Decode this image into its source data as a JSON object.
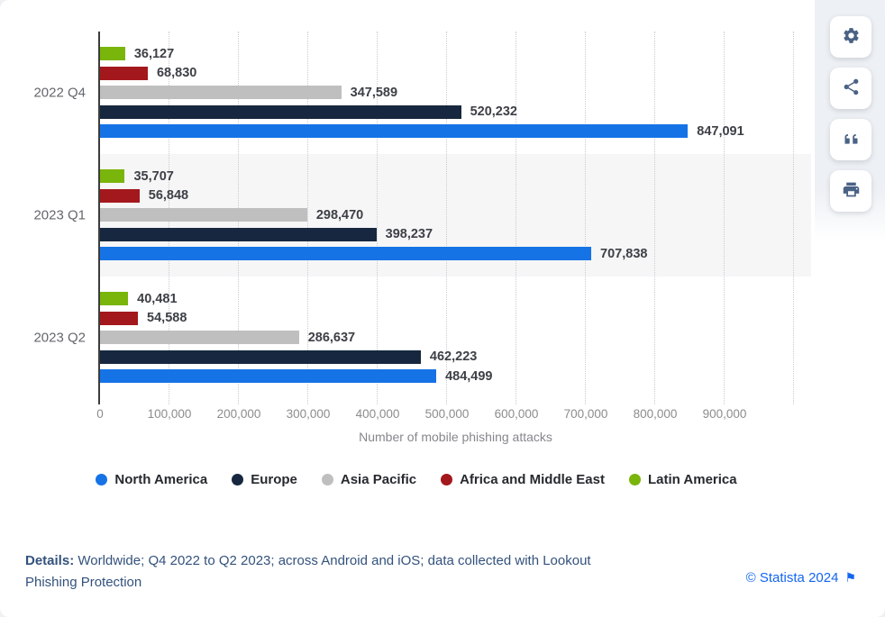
{
  "chart_data": {
    "type": "bar",
    "orientation": "horizontal",
    "title": "",
    "xlabel": "Number of mobile phishing attacks",
    "categories": [
      "2022 Q4",
      "2023 Q1",
      "2023 Q2"
    ],
    "series": [
      {
        "name": "North America",
        "color": "#1673e6",
        "values": [
          847091,
          707838,
          484499
        ]
      },
      {
        "name": "Europe",
        "color": "#17273f",
        "values": [
          520232,
          398237,
          462223
        ]
      },
      {
        "name": "Asia Pacific",
        "color": "#bfbfbf",
        "values": [
          347589,
          298470,
          286637
        ]
      },
      {
        "name": "Africa and Middle East",
        "color": "#a3181c",
        "values": [
          68830,
          56848,
          54588
        ]
      },
      {
        "name": "Latin America",
        "color": "#79b50a",
        "values": [
          36127,
          35707,
          40481
        ]
      }
    ],
    "bar_display_order_top_to_bottom": [
      "Latin America",
      "Africa and Middle East",
      "Asia Pacific",
      "Europe",
      "North America"
    ],
    "x_axis": {
      "tick_labels": [
        "0",
        "100,000",
        "200,000",
        "300,000",
        "400,000",
        "500,000",
        "600,000",
        "700,000",
        "800,000",
        "900,000"
      ],
      "tick_step": 100000,
      "xlim": [
        0,
        900000
      ],
      "grid": "dotted-vertical",
      "extra_unlabeled_gridline_value": 1000000
    },
    "row_highlight": {
      "category": "2023 Q1",
      "color": "#f6f6f7"
    },
    "legend_position": "bottom"
  },
  "toolbar": {
    "buttons": [
      {
        "id": "settings",
        "icon": "gear-icon"
      },
      {
        "id": "share",
        "icon": "share-icon"
      },
      {
        "id": "cite",
        "icon": "quote-icon"
      },
      {
        "id": "print",
        "icon": "printer-icon"
      }
    ]
  },
  "details": {
    "label": "Details:",
    "text": " Worldwide; Q4 2022 to Q2 2023; across Android and iOS; data collected with Lookout Phishing Protection"
  },
  "footer": {
    "copyright": "© Statista 2024",
    "flag_icon": "⚑"
  }
}
